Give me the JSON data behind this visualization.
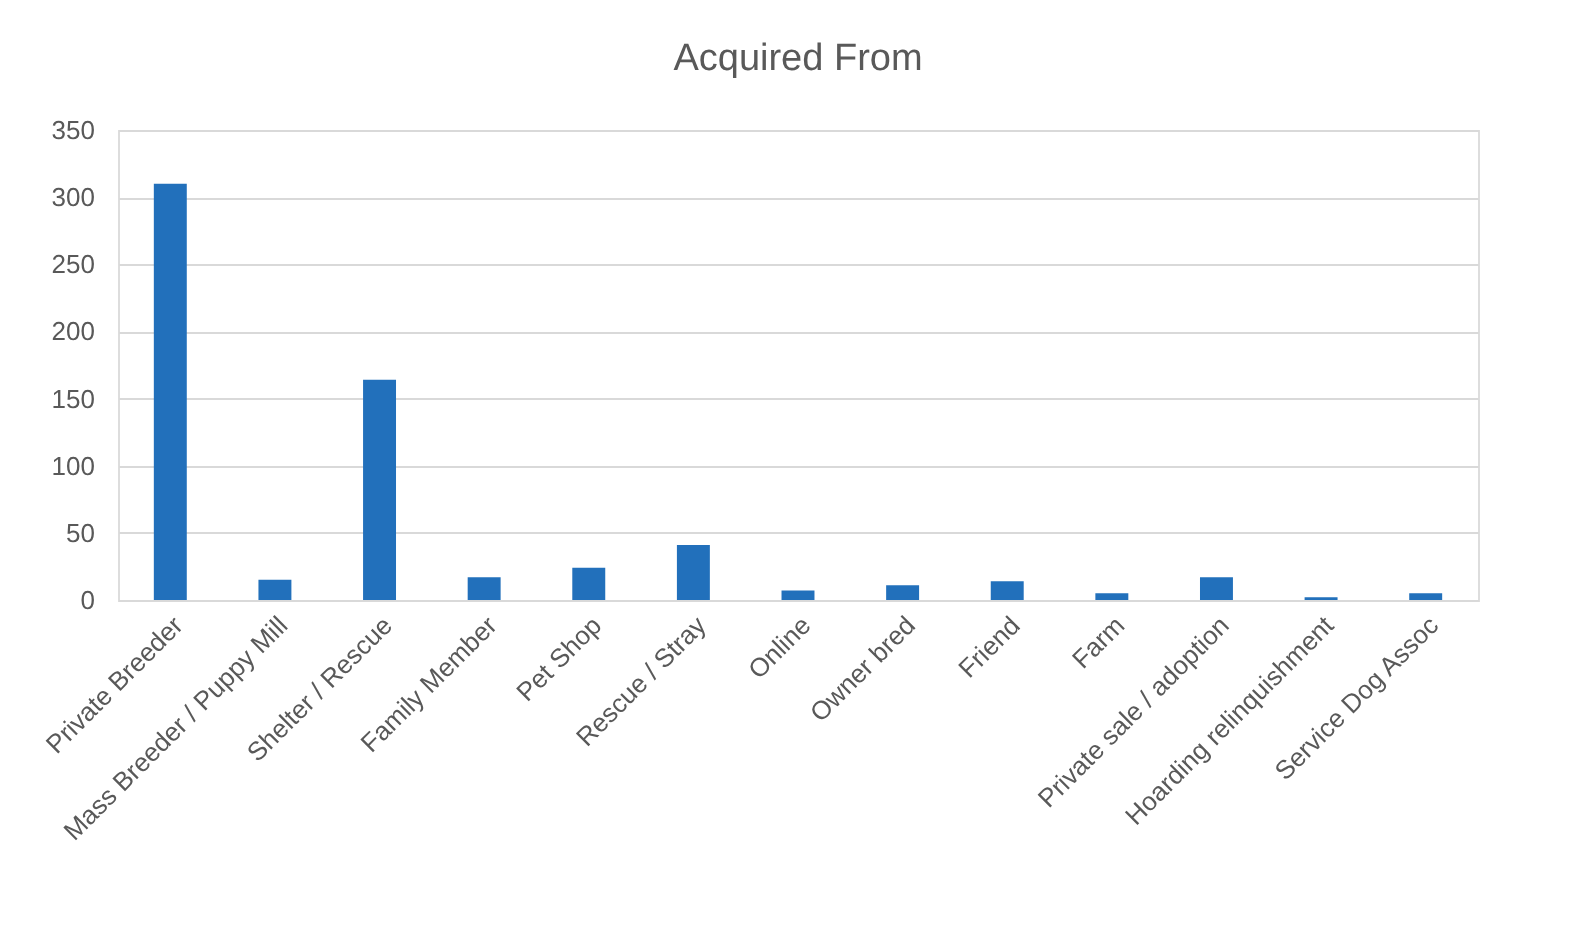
{
  "chart_data": {
    "type": "bar",
    "title": "Acquired From",
    "categories": [
      "Private Breeder",
      "Mass Breeder / Puppy Mill",
      "Shelter / Rescue",
      "Family Member",
      "Pet Shop",
      "Rescue / Stray",
      "Online",
      "Owner bred",
      "Friend",
      "Farm",
      "Private sale / adoption",
      "Hoarding relinquishment",
      "Service Dog Assoc"
    ],
    "values": [
      310,
      15,
      164,
      17,
      24,
      41,
      7,
      11,
      14,
      5,
      17,
      2,
      5
    ],
    "color": "#2270bb",
    "ylim": [
      0,
      350
    ],
    "yticks": [
      0,
      50,
      100,
      150,
      200,
      250,
      300,
      350
    ],
    "grid": "y"
  }
}
